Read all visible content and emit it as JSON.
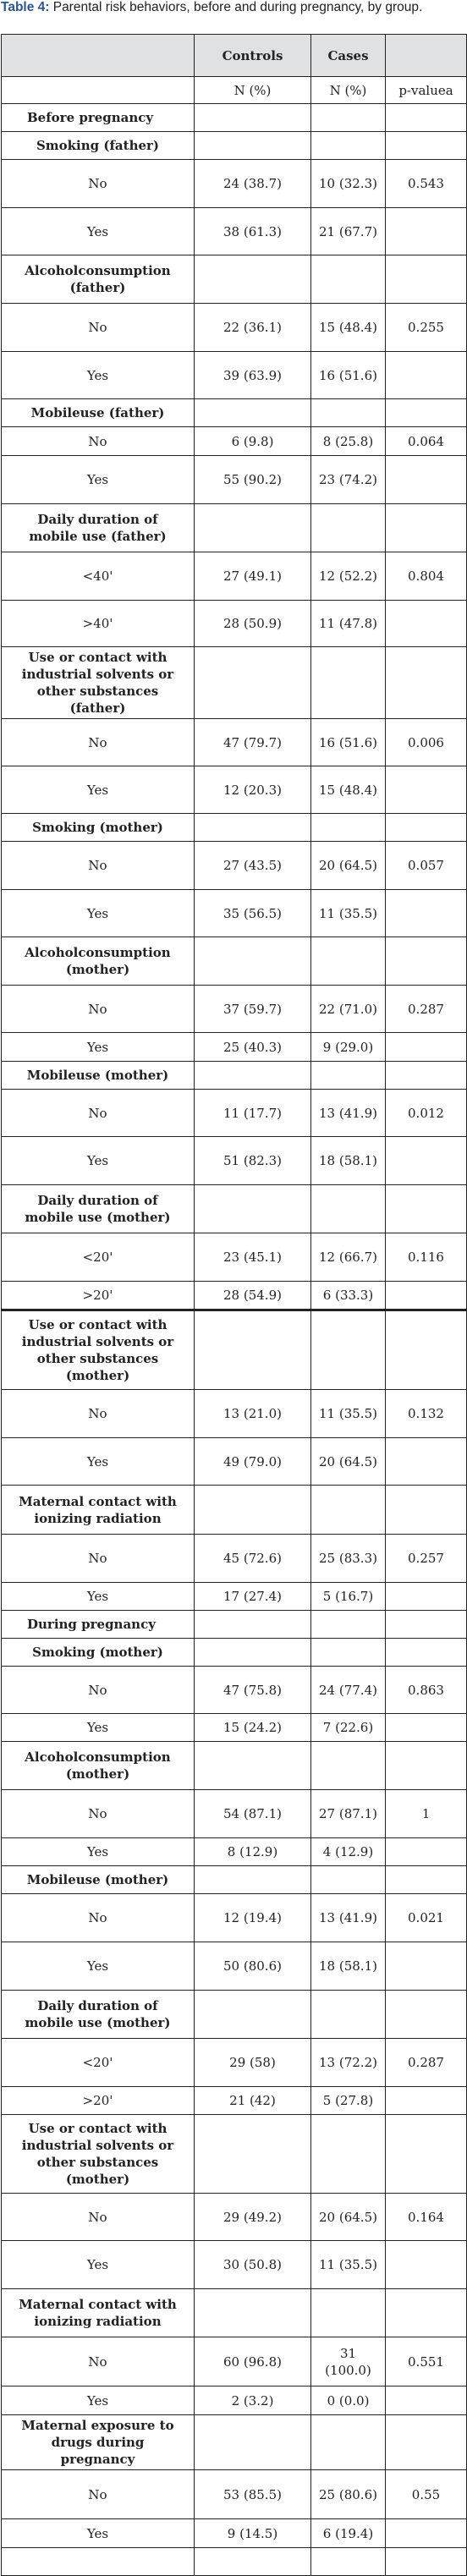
{
  "caption": {
    "lead": "Table 4:",
    "text": " Parental risk behaviors, before and during pregnancy, by group."
  },
  "table": {
    "headers": [
      "",
      "Controls",
      "Cases",
      ""
    ],
    "units": [
      "",
      "N (%)",
      "N (%)",
      "p-valuea"
    ],
    "rows": [
      {
        "kind": "section",
        "label": "Before pregnancy",
        "h": 33
      },
      {
        "kind": "group",
        "label": "Smoking (father)",
        "h": 33
      },
      {
        "kind": "data",
        "label": "No",
        "controls": "24 (38.7)",
        "cases": "10 (32.3)",
        "p": "0.543",
        "h": 57
      },
      {
        "kind": "data",
        "label": "Yes",
        "controls": "38 (61.3)",
        "cases": "21 (67.7)",
        "p": "",
        "h": 56
      },
      {
        "kind": "group",
        "label": "Alcoholconsumption (father)",
        "h": 57
      },
      {
        "kind": "data",
        "label": "No",
        "controls": "22 (36.1)",
        "cases": "15 (48.4)",
        "p": "0.255",
        "h": 57
      },
      {
        "kind": "data",
        "label": "Yes",
        "controls": "39 (63.9)",
        "cases": "16 (51.6)",
        "p": "",
        "h": 56
      },
      {
        "kind": "group",
        "label": "Mobileuse (father)",
        "h": 33
      },
      {
        "kind": "data",
        "label": "No",
        "controls": "6 (9.8)",
        "cases": "8 (25.8)",
        "p": "0.064",
        "h": 34
      },
      {
        "kind": "data",
        "label": "Yes",
        "controls": "55 (90.2)",
        "cases": "23 (74.2)",
        "p": "",
        "h": 57
      },
      {
        "kind": "group",
        "label": "Daily duration of mobile use (father)",
        "h": 57
      },
      {
        "kind": "data",
        "label": "<40'",
        "controls": "27 (49.1)",
        "cases": "12 (52.2)",
        "p": "0.804",
        "h": 57
      },
      {
        "kind": "data",
        "label": ">40'",
        "controls": "28 (50.9)",
        "cases": "11 (47.8)",
        "p": "",
        "h": 55
      },
      {
        "kind": "group",
        "label": "Use or contact with industrial solvents or other substances (father)",
        "h": 82
      },
      {
        "kind": "data",
        "label": "No",
        "controls": "47 (79.7)",
        "cases": "16 (51.6)",
        "p": "0.006",
        "h": 56
      },
      {
        "kind": "data",
        "label": "Yes",
        "controls": "12 (20.3)",
        "cases": "15 (48.4)",
        "p": "",
        "h": 56
      },
      {
        "kind": "group",
        "label": "Smoking (mother)",
        "h": 33
      },
      {
        "kind": "data",
        "label": "No",
        "controls": "27 (43.5)",
        "cases": "20 (64.5)",
        "p": "0.057",
        "h": 57
      },
      {
        "kind": "data",
        "label": "Yes",
        "controls": "35 (56.5)",
        "cases": "11 (35.5)",
        "p": "",
        "h": 56
      },
      {
        "kind": "group",
        "label": "Alcoholconsumption (mother)",
        "h": 57
      },
      {
        "kind": "data",
        "label": "No",
        "controls": "37 (59.7)",
        "cases": "22 (71.0)",
        "p": "0.287",
        "h": 56
      },
      {
        "kind": "data",
        "label": "Yes",
        "controls": "25 (40.3)",
        "cases": "9 (29.0)",
        "p": "",
        "h": 34
      },
      {
        "kind": "group",
        "label": "Mobileuse (mother)",
        "h": 33
      },
      {
        "kind": "data",
        "label": "No",
        "controls": "11 (17.7)",
        "cases": "13 (41.9)",
        "p": "0.012",
        "h": 56
      },
      {
        "kind": "data",
        "label": "Yes",
        "controls": "51 (82.3)",
        "cases": "18 (58.1)",
        "p": "",
        "h": 57
      },
      {
        "kind": "group",
        "label": "Daily duration of mobile use (mother)",
        "h": 57
      },
      {
        "kind": "data",
        "label": "<20'",
        "controls": "23 (45.1)",
        "cases": "12 (66.7)",
        "p": "0.116",
        "h": 57
      },
      {
        "kind": "data",
        "label": ">20'",
        "controls": "28 (54.9)",
        "cases": "6 (33.3)",
        "p": "",
        "h": 34
      },
      {
        "kind": "group",
        "label": "Use or contact with industrial solvents or other substances (mother)",
        "h": 94,
        "thick": true
      },
      {
        "kind": "data",
        "label": "No",
        "controls": "13 (21.0)",
        "cases": "11 (35.5)",
        "p": "0.132",
        "h": 57
      },
      {
        "kind": "data",
        "label": "Yes",
        "controls": "49 (79.0)",
        "cases": "20 (64.5)",
        "p": "",
        "h": 56
      },
      {
        "kind": "group",
        "label": "Maternal contact with ionizing radiation",
        "h": 58
      },
      {
        "kind": "data",
        "label": "No",
        "controls": "45 (72.6)",
        "cases": "25 (83.3)",
        "p": "0.257",
        "h": 57
      },
      {
        "kind": "data",
        "label": "Yes",
        "controls": "17 (27.4)",
        "cases": "5 (16.7)",
        "p": "",
        "h": 33
      },
      {
        "kind": "section",
        "label": "During pregnancy",
        "h": 33
      },
      {
        "kind": "group",
        "label": "Smoking (mother)",
        "h": 33
      },
      {
        "kind": "data",
        "label": "No",
        "controls": "47 (75.8)",
        "cases": "24 (77.4)",
        "p": "0.863",
        "h": 56
      },
      {
        "kind": "data",
        "label": "Yes",
        "controls": "15 (24.2)",
        "cases": "7 (22.6)",
        "p": "",
        "h": 33
      },
      {
        "kind": "group",
        "label": "Alcoholconsumption (mother)",
        "h": 57
      },
      {
        "kind": "data",
        "label": "No",
        "controls": "54 (87.1)",
        "cases": "27 (87.1)",
        "p": "1",
        "h": 57
      },
      {
        "kind": "data",
        "label": "Yes",
        "controls": "8 (12.9)",
        "cases": "4 (12.9)",
        "p": "",
        "h": 33
      },
      {
        "kind": "group",
        "label": "Mobileuse (mother)",
        "h": 33
      },
      {
        "kind": "data",
        "label": "No",
        "controls": "12 (19.4)",
        "cases": "13 (41.9)",
        "p": "0.021",
        "h": 57
      },
      {
        "kind": "data",
        "label": "Yes",
        "controls": "50 (80.6)",
        "cases": "18 (58.1)",
        "p": "",
        "h": 57
      },
      {
        "kind": "group",
        "label": "Daily duration of mobile use (mother)",
        "h": 57
      },
      {
        "kind": "data",
        "label": "<20'",
        "controls": "29 (58)",
        "cases": "13 (72.2)",
        "p": "0.287",
        "h": 57
      },
      {
        "kind": "data",
        "label": ">20'",
        "controls": "21 (42)",
        "cases": "5 (27.8)",
        "p": "",
        "h": 33
      },
      {
        "kind": "group",
        "label": "Use or contact with industrial solvents or other substances (mother)",
        "h": 93
      },
      {
        "kind": "data",
        "label": "No",
        "controls": "29 (49.2)",
        "cases": "20 (64.5)",
        "p": "0.164",
        "h": 56
      },
      {
        "kind": "data",
        "label": "Yes",
        "controls": "30 (50.8)",
        "cases": "11 (35.5)",
        "p": "",
        "h": 57
      },
      {
        "kind": "group",
        "label": "Maternal contact with ionizing radiation",
        "h": 57
      },
      {
        "kind": "data",
        "label": "No",
        "controls": "60 (96.8)",
        "cases": "31 (100.0)",
        "p": "0.551",
        "h": 58
      },
      {
        "kind": "data",
        "label": "Yes",
        "controls": "2 (3.2)",
        "cases": "0 (0.0)",
        "p": "",
        "h": 34
      },
      {
        "kind": "group",
        "label": "Maternal exposure to drugs during pregnancy",
        "h": 56
      },
      {
        "kind": "data",
        "label": "No",
        "controls": "53 (85.5)",
        "cases": "25 (80.6)",
        "p": "0.55",
        "h": 58
      },
      {
        "kind": "data",
        "label": "Yes",
        "controls": "9 (14.5)",
        "cases": "6 (19.4)",
        "p": "",
        "h": 34
      },
      {
        "kind": "blank",
        "h": 33
      }
    ]
  }
}
